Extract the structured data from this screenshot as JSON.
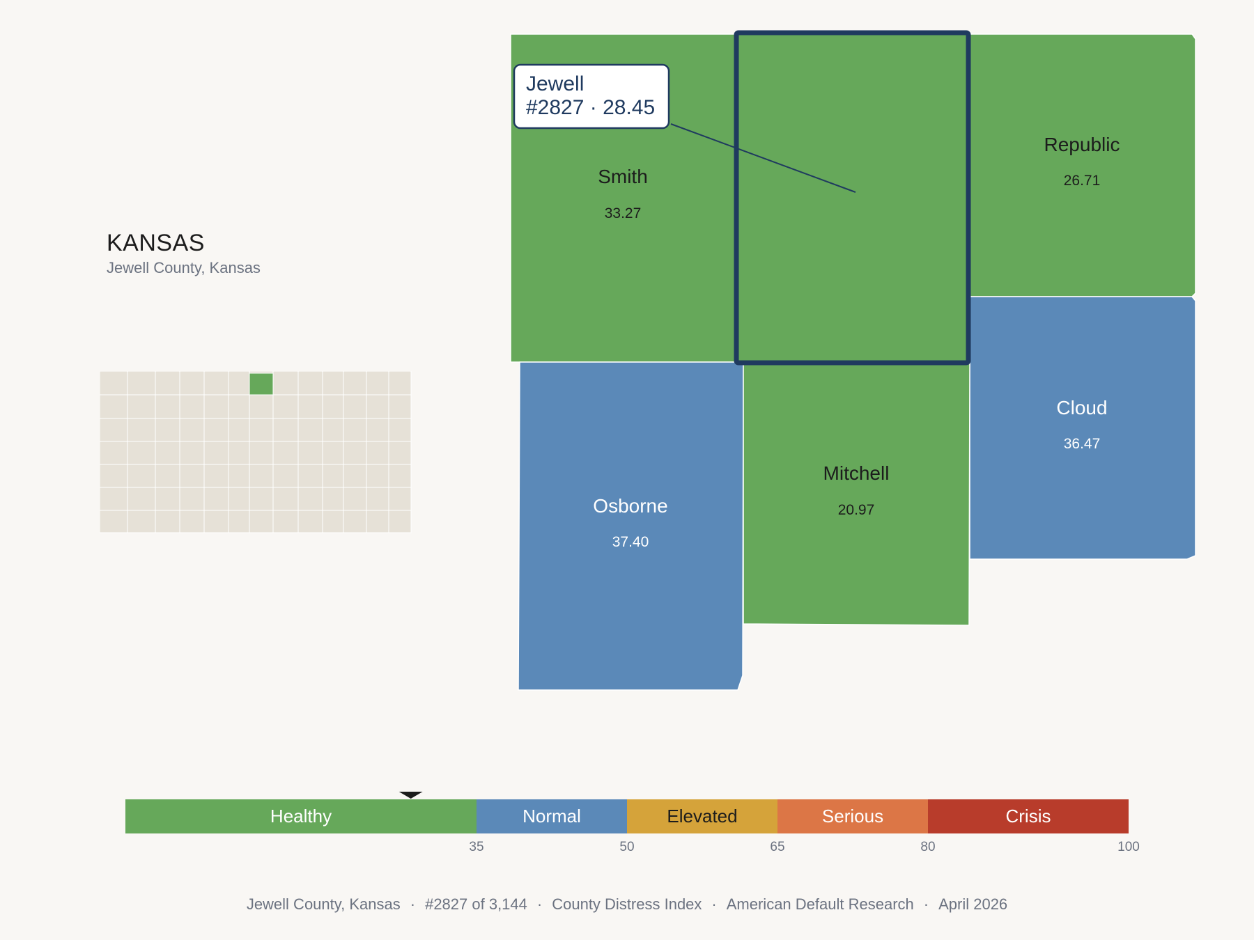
{
  "header": {
    "state": "KANSAS",
    "subtitle": "Jewell County, Kansas"
  },
  "colors": {
    "healthy": "#66a85a",
    "normal": "#5b89b8",
    "elevated": "#d5a33a",
    "serious": "#dc7646",
    "crisis": "#b83c2b",
    "highlight": "#1f3a5f",
    "locator_fill": "#e6e1d7",
    "background": "#f9f7f4"
  },
  "callout": {
    "name": "Jewell",
    "detail": "#2827 · 28.45"
  },
  "counties": [
    {
      "key": "smith",
      "name": "Smith",
      "value": "33.27",
      "category": "healthy"
    },
    {
      "key": "jewell",
      "name": "Jewell",
      "value": "28.45",
      "category": "healthy",
      "selected": true
    },
    {
      "key": "republic",
      "name": "Republic",
      "value": "26.71",
      "category": "healthy"
    },
    {
      "key": "osborne",
      "name": "Osborne",
      "value": "37.40",
      "category": "normal"
    },
    {
      "key": "mitchell",
      "name": "Mitchell",
      "value": "20.97",
      "category": "healthy"
    },
    {
      "key": "cloud",
      "name": "Cloud",
      "value": "36.47",
      "category": "normal"
    }
  ],
  "scale": {
    "min": 0,
    "max": 100,
    "marker_value": 28.45,
    "bands": [
      {
        "label": "Healthy",
        "from": 0,
        "to": 35,
        "category": "healthy"
      },
      {
        "label": "Normal",
        "from": 35,
        "to": 50,
        "category": "normal"
      },
      {
        "label": "Elevated",
        "from": 50,
        "to": 65,
        "category": "elevated"
      },
      {
        "label": "Serious",
        "from": 65,
        "to": 80,
        "category": "serious"
      },
      {
        "label": "Crisis",
        "from": 80,
        "to": 100,
        "category": "crisis"
      }
    ],
    "ticks": [
      "35",
      "50",
      "65",
      "80",
      "100"
    ]
  },
  "footer": {
    "county": "Jewell County, Kansas",
    "rank": "#2827 of 3,144",
    "index": "County Distress Index",
    "source": "American Default Research",
    "date": "April 2026"
  }
}
